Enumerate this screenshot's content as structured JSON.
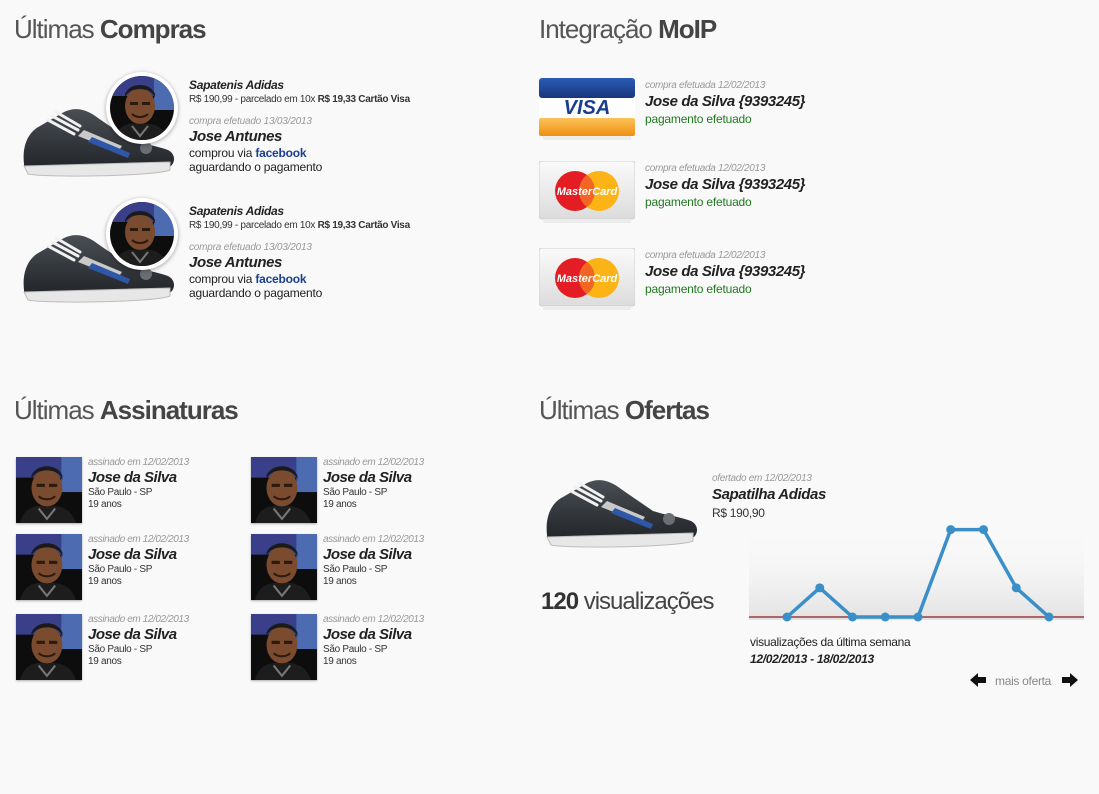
{
  "compras": {
    "title_prefix": "Últimas",
    "title_bold": "Compras",
    "items": [
      {
        "product": "Sapatenis Adidas",
        "price_prefix": "R$ 190,99 - parcelado em 10x",
        "price_installment": "R$ 19,33 Cartão Visa",
        "date": "compra efetuado 13/03/2013",
        "name": "Jose Antunes",
        "via_prefix": "comprou via",
        "via_network": "facebook",
        "status": "aguardando o pagamento"
      },
      {
        "product": "Sapatenis Adidas",
        "price_prefix": "R$ 190,99 - parcelado em 10x",
        "price_installment": "R$ 19,33 Cartão Visa",
        "date": "compra efetuado 13/03/2013",
        "name": "Jose Antunes",
        "via_prefix": "comprou via",
        "via_network": "facebook",
        "status": "aguardando o pagamento"
      }
    ]
  },
  "moip": {
    "title_prefix": "Integração",
    "title_bold": "MoIP",
    "payments": [
      {
        "card": "VISA",
        "date": "compra efetuada 12/02/2013",
        "name": "Jose da Silva {9393245}",
        "status": "pagamento efetuado"
      },
      {
        "card": "MasterCard",
        "date": "compra efetuada 12/02/2013",
        "name": "Jose da Silva {9393245}",
        "status": "pagamento efetuado"
      },
      {
        "card": "MasterCard",
        "date": "compra efetuada 12/02/2013",
        "name": "Jose da Silva {9393245}",
        "status": "pagamento efetuado"
      }
    ],
    "colors": {
      "status": "#1f7a1f",
      "visa_blue": "#1a3e8f",
      "visa_gold": "#f5a623",
      "mc_red": "#e41c23",
      "mc_yellow": "#fcb315"
    }
  },
  "assinaturas": {
    "title_prefix": "Últimas",
    "title_bold": "Assinaturas",
    "items": [
      {
        "date": "assinado em 12/02/2013",
        "name": "Jose da Silva",
        "location": "São Paulo - SP",
        "age": "19 anos"
      },
      {
        "date": "assinado em 12/02/2013",
        "name": "Jose da Silva",
        "location": "São Paulo - SP",
        "age": "19 anos"
      },
      {
        "date": "assinado em 12/02/2013",
        "name": "Jose da Silva",
        "location": "São Paulo - SP",
        "age": "19 anos"
      },
      {
        "date": "assinado em 12/02/2013",
        "name": "Jose da Silva",
        "location": "São Paulo - SP",
        "age": "19 anos"
      },
      {
        "date": "assinado em 12/02/2013",
        "name": "Jose da Silva",
        "location": "São Paulo - SP",
        "age": "19 anos"
      },
      {
        "date": "assinado em 12/02/2013",
        "name": "Jose da Silva",
        "location": "São Paulo - SP",
        "age": "19 anos"
      }
    ]
  },
  "ofertas": {
    "title_prefix": "Últimas",
    "title_bold": "Ofertas",
    "offer": {
      "date": "ofertado em 12/02/2013",
      "name": "Sapatilha Adidas",
      "price": "R$ 190,90"
    },
    "views_count": "120",
    "views_label": "visualizações",
    "chart_caption": "visualizações da última semana",
    "chart_range": "12/02/2013 - 18/02/2013",
    "more_label": "mais oferta",
    "icons": {
      "prev": "arrow-left-icon",
      "next": "arrow-right-icon"
    }
  },
  "chart_data": {
    "type": "line",
    "values": [
      0,
      1,
      0,
      0,
      0,
      3,
      3,
      1,
      0
    ],
    "ylim": [
      0,
      3.5
    ],
    "grid": false,
    "line_color": "#3b8fc9",
    "baseline_color": "#8b1a1a"
  }
}
